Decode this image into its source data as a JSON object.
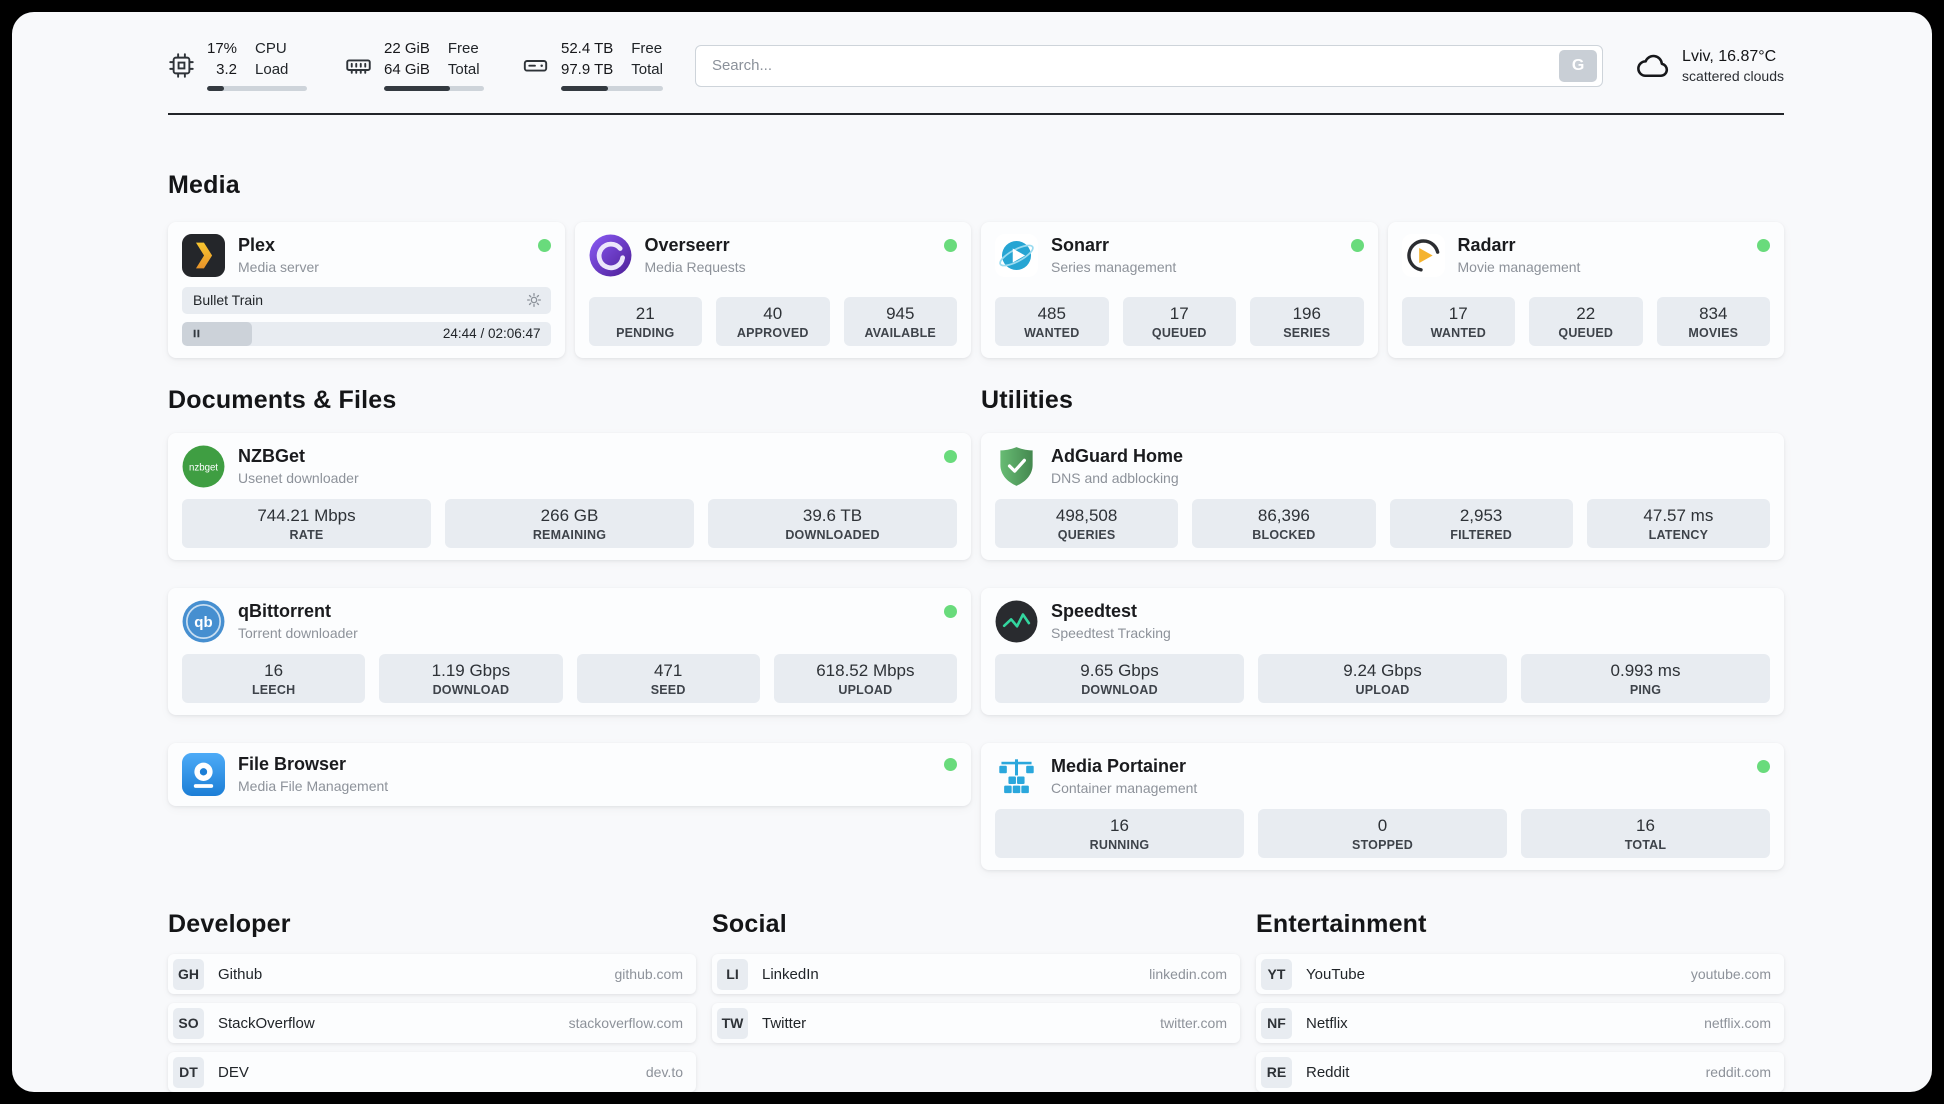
{
  "colors": {
    "status_online": "#69db7c"
  },
  "icons": {
    "nzbget_text": "nzbget",
    "qbittorrent_text": "qb"
  },
  "header": {
    "cpu": {
      "percent": "17%",
      "value": "3.2",
      "label_top": "CPU",
      "label_bottom": "Load",
      "progress": 17
    },
    "ram": {
      "free": "22 GiB",
      "total": "64 GiB",
      "label_top": "Free",
      "label_bottom": "Total",
      "progress": 66
    },
    "disk": {
      "free": "52.4 TB",
      "total": "97.9 TB",
      "label_top": "Free",
      "label_bottom": "Total",
      "progress": 46
    },
    "search": {
      "placeholder": "Search...",
      "engine_button": "G"
    },
    "weather": {
      "location": "Lviv, 16.87°C",
      "condition": "scattered clouds"
    }
  },
  "sections": {
    "media": {
      "title": "Media",
      "plex": {
        "name": "Plex",
        "subtitle": "Media server",
        "now_playing": "Bullet Train",
        "time": "24:44 / 02:06:47",
        "progress": 19
      },
      "overseerr": {
        "name": "Overseerr",
        "subtitle": "Media Requests",
        "stats": [
          {
            "value": "21",
            "label": "PENDING"
          },
          {
            "value": "40",
            "label": "APPROVED"
          },
          {
            "value": "945",
            "label": "AVAILABLE"
          }
        ]
      },
      "sonarr": {
        "name": "Sonarr",
        "subtitle": "Series management",
        "stats": [
          {
            "value": "485",
            "label": "WANTED"
          },
          {
            "value": "17",
            "label": "QUEUED"
          },
          {
            "value": "196",
            "label": "SERIES"
          }
        ]
      },
      "radarr": {
        "name": "Radarr",
        "subtitle": "Movie management",
        "stats": [
          {
            "value": "17",
            "label": "WANTED"
          },
          {
            "value": "22",
            "label": "QUEUED"
          },
          {
            "value": "834",
            "label": "MOVIES"
          }
        ]
      }
    },
    "documents": {
      "title": "Documents & Files",
      "nzbget": {
        "name": "NZBGet",
        "subtitle": "Usenet downloader",
        "stats": [
          {
            "value": "744.21 Mbps",
            "label": "RATE"
          },
          {
            "value": "266 GB",
            "label": "REMAINING"
          },
          {
            "value": "39.6 TB",
            "label": "DOWNLOADED"
          }
        ]
      },
      "qbittorrent": {
        "name": "qBittorrent",
        "subtitle": "Torrent downloader",
        "stats": [
          {
            "value": "16",
            "label": "LEECH"
          },
          {
            "value": "1.19 Gbps",
            "label": "DOWNLOAD"
          },
          {
            "value": "471",
            "label": "SEED"
          },
          {
            "value": "618.52 Mbps",
            "label": "UPLOAD"
          }
        ]
      },
      "filebrowser": {
        "name": "File Browser",
        "subtitle": "Media File Management"
      }
    },
    "utilities": {
      "title": "Utilities",
      "adguard": {
        "name": "AdGuard Home",
        "subtitle": "DNS and adblocking",
        "stats": [
          {
            "value": "498,508",
            "label": "QUERIES"
          },
          {
            "value": "86,396",
            "label": "BLOCKED"
          },
          {
            "value": "2,953",
            "label": "FILTERED"
          },
          {
            "value": "47.57 ms",
            "label": "LATENCY"
          }
        ]
      },
      "speedtest": {
        "name": "Speedtest",
        "subtitle": "Speedtest Tracking",
        "stats": [
          {
            "value": "9.65 Gbps",
            "label": "DOWNLOAD"
          },
          {
            "value": "9.24 Gbps",
            "label": "UPLOAD"
          },
          {
            "value": "0.993 ms",
            "label": "PING"
          }
        ]
      },
      "portainer": {
        "name": "Media Portainer",
        "subtitle": "Container management",
        "stats": [
          {
            "value": "16",
            "label": "RUNNING"
          },
          {
            "value": "0",
            "label": "STOPPED"
          },
          {
            "value": "16",
            "label": "TOTAL"
          }
        ]
      }
    },
    "bookmarks": [
      {
        "title": "Developer",
        "items": [
          {
            "abbr": "GH",
            "name": "Github",
            "url": "github.com"
          },
          {
            "abbr": "SO",
            "name": "StackOverflow",
            "url": "stackoverflow.com"
          },
          {
            "abbr": "DT",
            "name": "DEV",
            "url": "dev.to"
          }
        ]
      },
      {
        "title": "Social",
        "items": [
          {
            "abbr": "LI",
            "name": "LinkedIn",
            "url": "linkedin.com"
          },
          {
            "abbr": "TW",
            "name": "Twitter",
            "url": "twitter.com"
          }
        ]
      },
      {
        "title": "Entertainment",
        "items": [
          {
            "abbr": "YT",
            "name": "YouTube",
            "url": "youtube.com"
          },
          {
            "abbr": "NF",
            "name": "Netflix",
            "url": "netflix.com"
          },
          {
            "abbr": "RE",
            "name": "Reddit",
            "url": "reddit.com"
          }
        ]
      }
    ]
  }
}
